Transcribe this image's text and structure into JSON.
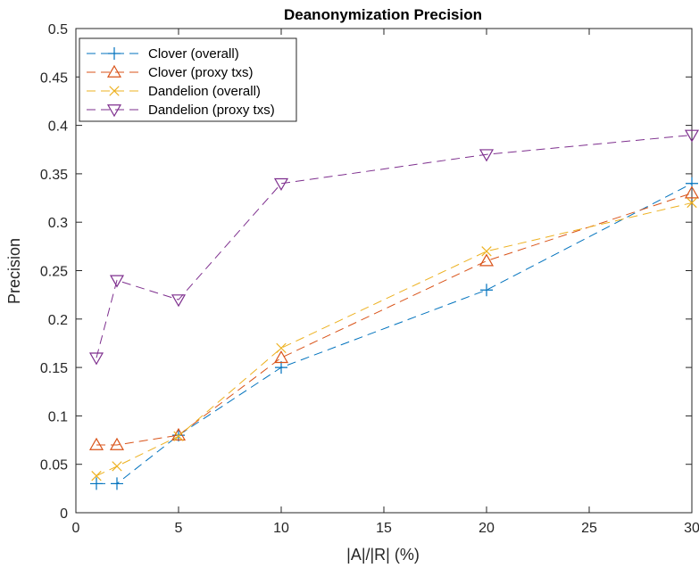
{
  "chart_data": {
    "type": "line",
    "title": "Deanonymization Precision",
    "xlabel": "|A|/|R| (%)",
    "ylabel": "Precision",
    "xlim": [
      0,
      30
    ],
    "ylim": [
      0,
      0.5
    ],
    "xticks": [
      0,
      5,
      10,
      15,
      20,
      25,
      30
    ],
    "xtick_labels": [
      "0",
      "5",
      "10",
      "15",
      "20",
      "25",
      "30"
    ],
    "yticks": [
      0,
      0.05,
      0.1,
      0.15,
      0.2,
      0.25,
      0.3,
      0.35,
      0.4,
      0.45,
      0.5
    ],
    "ytick_labels": [
      "0",
      "0.05",
      "0.1",
      "0.15",
      "0.2",
      "0.25",
      "0.3",
      "0.35",
      "0.4",
      "0.45",
      "0.5"
    ],
    "grid": false,
    "legend_position": "top-left",
    "x": [
      1,
      2,
      5,
      10,
      20,
      30
    ],
    "series": [
      {
        "name": "Clover (overall)",
        "marker": "plus",
        "color": "#0072BD",
        "values": [
          0.03,
          0.03,
          0.08,
          0.15,
          0.23,
          0.34
        ]
      },
      {
        "name": "Clover (proxy txs)",
        "marker": "triangle-up",
        "color": "#D95319",
        "values": [
          0.07,
          0.07,
          0.08,
          0.16,
          0.26,
          0.33
        ]
      },
      {
        "name": "Dandelion (overall)",
        "marker": "x",
        "color": "#EDB120",
        "values": [
          0.038,
          0.048,
          0.079,
          0.17,
          0.27,
          0.32
        ]
      },
      {
        "name": "Dandelion (proxy txs)",
        "marker": "triangle-down",
        "color": "#7E2F8E",
        "values": [
          0.16,
          0.24,
          0.22,
          0.34,
          0.37,
          0.39
        ]
      }
    ]
  }
}
